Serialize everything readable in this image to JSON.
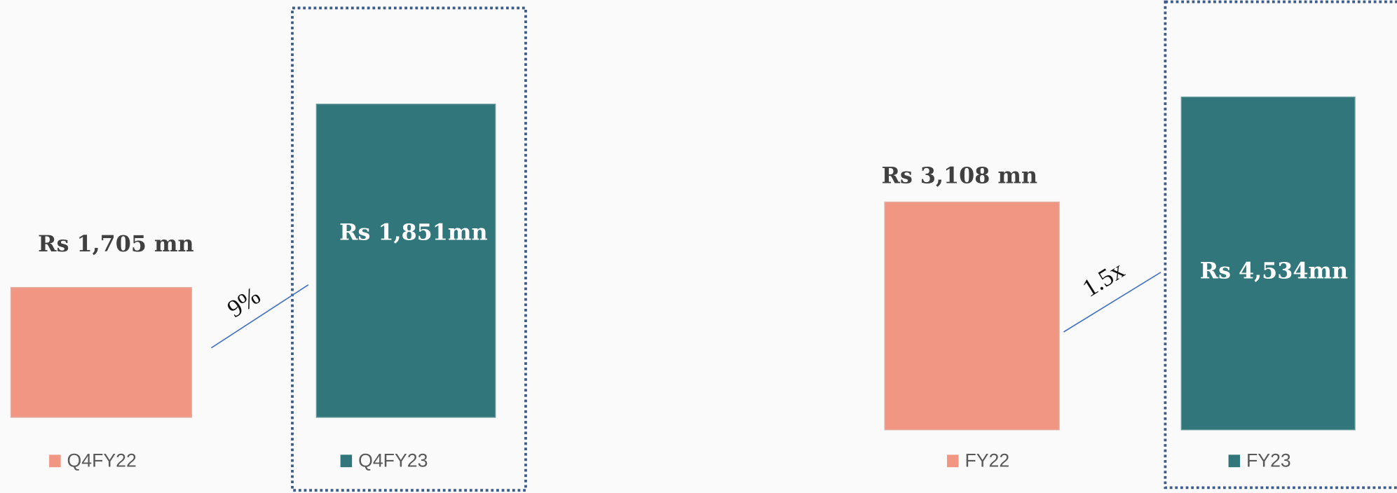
{
  "panels": [
    {
      "previous": {
        "label": "Q4FY22",
        "value_label": "Rs 1,705 mn"
      },
      "current": {
        "label": "Q4FY23",
        "value_label": "Rs 1,851mn"
      },
      "change": "9%"
    },
    {
      "previous": {
        "label": "FY22",
        "value_label": "Rs 3,108 mn"
      },
      "current": {
        "label": "FY23",
        "value_label": "Rs 4,534mn"
      },
      "change": "1.5x"
    }
  ]
}
